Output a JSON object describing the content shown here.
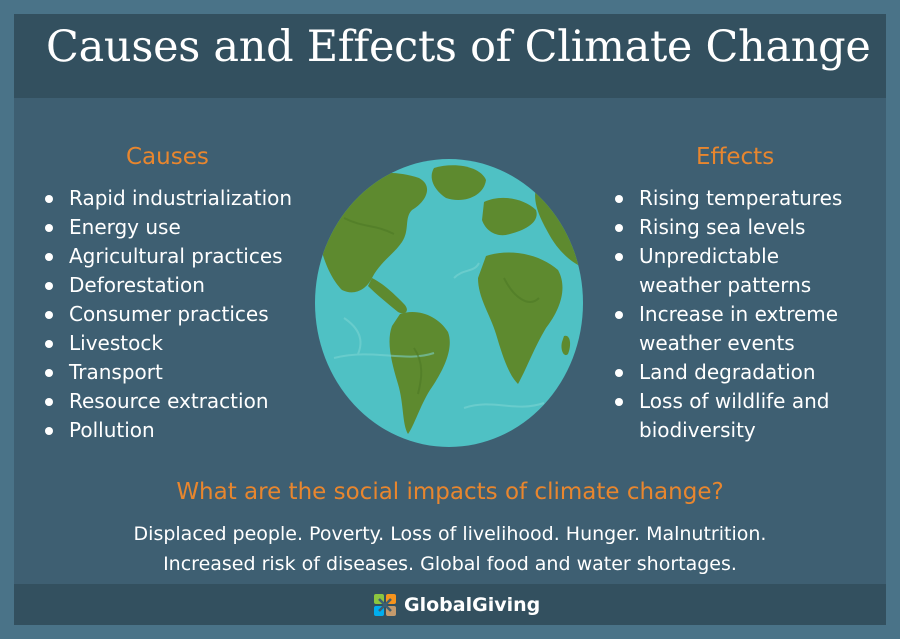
{
  "title": "Causes and Effects of Climate Change",
  "causes": {
    "heading": "Causes",
    "items": [
      "Rapid industrialization",
      "Energy use",
      "Agricultural practices",
      "Deforestation",
      "Consumer practices",
      "Livestock",
      "Transport",
      "Resource extraction",
      "Pollution"
    ]
  },
  "effects": {
    "heading": "Effects",
    "items": [
      "Rising temperatures",
      "Rising sea levels",
      "Unpredictable",
      "weather patterns",
      "Increase in extreme",
      "weather events",
      "Land degradation",
      "Loss of wildlife and",
      "biodiversity"
    ],
    "bulleted": [
      true,
      true,
      true,
      false,
      true,
      false,
      true,
      true,
      false
    ]
  },
  "social": {
    "question": "What are the social impacts of climate change?",
    "line1": "Displaced people. Poverty. Loss of livelihood. Hunger. Malnutrition.",
    "line2": "Increased risk of diseases. Global food and water shortages."
  },
  "footer": {
    "logo_text": "GlobalGiving",
    "logo_icon": "globalgiving-logo-icon"
  },
  "colors": {
    "background": "#4a7388",
    "panel": "#3e5f72",
    "bar": "#33505f",
    "accent": "#e8862e",
    "ocean": "#4fc1c4",
    "land": "#5e8a2f"
  }
}
